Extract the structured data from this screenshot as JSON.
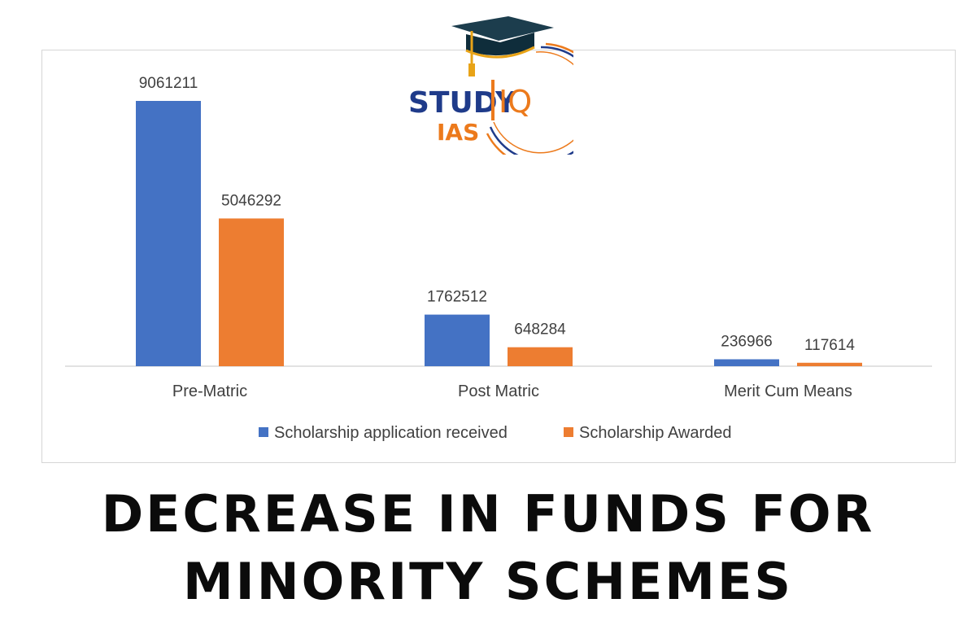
{
  "brand": {
    "logo_word_1": "STUDY",
    "logo_word_2": "IQ",
    "logo_word_3": "IAS"
  },
  "headline": {
    "line_1": "DECREASE IN FUNDS FOR",
    "line_2": "MINORITY SCHEMES"
  },
  "colors": {
    "series_1": "#4472C4",
    "series_2": "#ED7D31",
    "text": "#404040",
    "axis": "#d9d9d9"
  },
  "chart_data": {
    "type": "bar",
    "title": "",
    "xlabel": "",
    "ylabel": "",
    "categories": [
      "Pre-Matric",
      "Post Matric",
      "Merit Cum Means"
    ],
    "series": [
      {
        "name": "Scholarship application received",
        "values": [
          9061211,
          1762512,
          236966
        ]
      },
      {
        "name": "Scholarship Awarded",
        "values": [
          5046292,
          648284,
          117614
        ]
      }
    ],
    "ylim": [
      0,
      9061211
    ],
    "grid": false,
    "legend_position": "bottom",
    "data_labels": true
  }
}
